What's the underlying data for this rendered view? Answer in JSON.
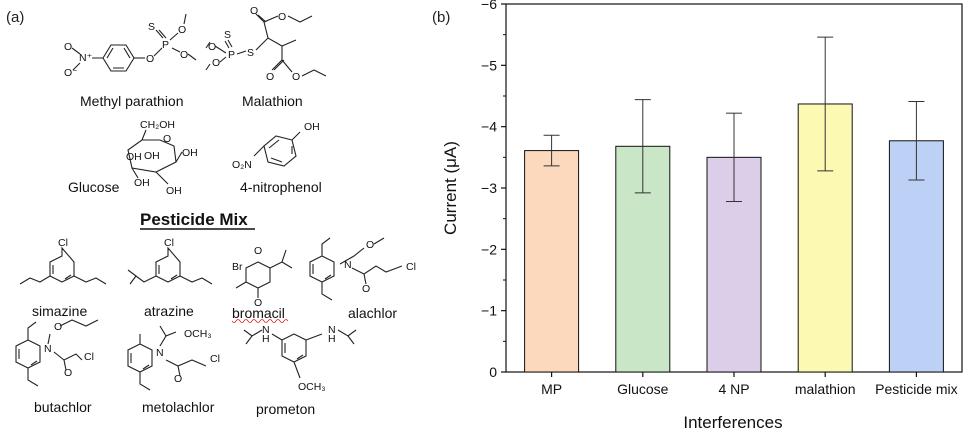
{
  "panel_a": {
    "label": "(a)",
    "names": {
      "methyl_parathion": "Methyl parathion",
      "malathion": "Malathion",
      "glucose": "Glucose",
      "nitrophenol": "4-nitrophenol",
      "simazine": "simazine",
      "atrazine": "atrazine",
      "bromacil": "bromacil",
      "alachlor": "alachlor",
      "butachlor": "butachlor",
      "metolachlor": "metolachlor",
      "prometon": "prometon"
    },
    "section_title": "Pesticide Mix",
    "atoms": {
      "S": "S",
      "P": "P",
      "O": "O",
      "N": "N",
      "OH": "OH",
      "CH2OH": "CH₂OH",
      "O2N": "O₂N",
      "Cl": "Cl",
      "Br": "Br",
      "H": "H",
      "OCH3": "OCH₃",
      "NO2_plus": "N⁺",
      "O_minus": "O⁻"
    }
  },
  "panel_b": {
    "label": "(b)"
  },
  "chart_data": {
    "type": "bar",
    "categories": [
      "MP",
      "Glucose",
      "4 NP",
      "malathion",
      "Pesticide mix"
    ],
    "values": [
      -3.61,
      -3.68,
      -3.5,
      -4.37,
      -3.77
    ],
    "errors": [
      0.25,
      0.76,
      0.72,
      1.09,
      0.64
    ],
    "colors": [
      "#fcd8bd",
      "#c9e7c7",
      "#dccde8",
      "#fbf9b2",
      "#bdd0f5"
    ],
    "xlabel": "Interferences",
    "ylabel": "Current (μA)",
    "ylim": [
      0,
      -6
    ],
    "yticks": [
      0,
      -1,
      -2,
      -3,
      -4,
      -5,
      -6
    ],
    "ytick_labels": [
      "0",
      "−1",
      "−2",
      "−3",
      "−4",
      "−5",
      "−6"
    ],
    "grid": false
  }
}
